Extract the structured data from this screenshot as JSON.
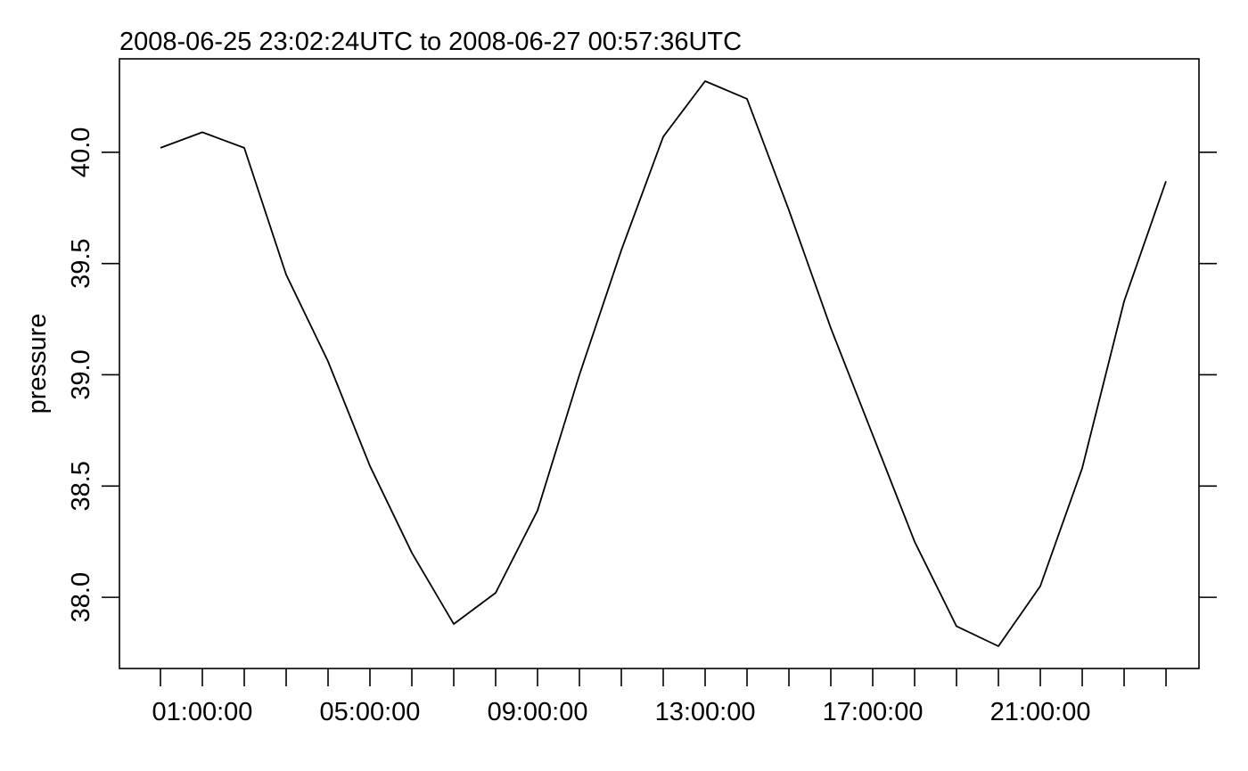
{
  "chart_data": {
    "type": "line",
    "title": "2008-06-25 23:02:24UTC to 2008-06-27 00:57:36UTC",
    "xlabel": "",
    "ylabel": "pressure",
    "x_unit": "hour of day",
    "x_range": [
      "00:00:00",
      "24:40:00"
    ],
    "ylim": [
      37.68,
      40.42
    ],
    "y_ticks": [
      38.0,
      38.5,
      39.0,
      39.5,
      40.0
    ],
    "y_tick_labels": [
      "38.0",
      "38.5",
      "39.0",
      "39.5",
      "40.0"
    ],
    "x_ticks": [
      "00:00:00",
      "01:00:00",
      "02:00:00",
      "03:00:00",
      "04:00:00",
      "05:00:00",
      "06:00:00",
      "07:00:00",
      "08:00:00",
      "09:00:00",
      "10:00:00",
      "11:00:00",
      "12:00:00",
      "13:00:00",
      "14:00:00",
      "15:00:00",
      "16:00:00",
      "17:00:00",
      "18:00:00",
      "19:00:00",
      "20:00:00",
      "21:00:00",
      "22:00:00",
      "23:00:00",
      "24:00:00"
    ],
    "x_tick_labels": [
      "",
      "01:00:00",
      "",
      "",
      "",
      "05:00:00",
      "",
      "",
      "",
      "09:00:00",
      "",
      "",
      "",
      "13:00:00",
      "",
      "",
      "",
      "17:00:00",
      "",
      "",
      "",
      "21:00:00",
      "",
      "",
      ""
    ],
    "x": [
      "00:00:00",
      "01:00:00",
      "02:00:00",
      "03:00:00",
      "04:00:00",
      "05:00:00",
      "06:00:00",
      "07:00:00",
      "08:00:00",
      "09:00:00",
      "10:00:00",
      "11:00:00",
      "12:00:00",
      "13:00:00",
      "14:00:00",
      "15:00:00",
      "16:00:00",
      "17:00:00",
      "18:00:00",
      "19:00:00",
      "20:00:00",
      "21:00:00",
      "22:00:00",
      "23:00:00",
      "24:00:00"
    ],
    "series": [
      {
        "values": [
          40.02,
          40.09,
          40.02,
          39.45,
          39.06,
          38.59,
          38.2,
          37.88,
          38.02,
          38.39,
          39.0,
          39.56,
          40.07,
          40.32,
          40.24,
          39.74,
          39.21,
          38.73,
          38.25,
          37.87,
          37.78,
          38.05,
          38.58,
          39.33,
          39.87
        ],
        "color": "#000000"
      }
    ],
    "grid": false,
    "legend": "none"
  }
}
